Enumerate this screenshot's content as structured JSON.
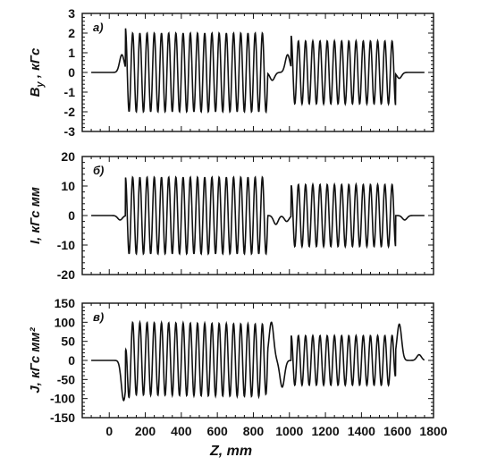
{
  "chart_data": [
    {
      "type": "line",
      "panel_label": "а)",
      "ylabel": "B_y , кГс",
      "ylabel_main": "B",
      "ylabel_sub": "y",
      "ylabel_rest": " , кГс",
      "ylim": [
        -3,
        3
      ],
      "yticks": [
        -3,
        -2,
        -1,
        0,
        1,
        2,
        3
      ],
      "xlim": [
        -150,
        1800
      ],
      "series": [
        {
          "segments": [
            {
              "z_start": 90,
              "z_end": 880,
              "amplitude": 2.0,
              "period": 40
            },
            {
              "z_start": 1010,
              "z_end": 1590,
              "amplitude": 1.6,
              "period": 40
            }
          ],
          "edge_bumps": [
            {
              "z": 70,
              "value": 0.9
            },
            {
              "z": 905,
              "value": -0.4
            },
            {
              "z": 990,
              "value": 0.9
            },
            {
              "z": 1610,
              "value": -0.3
            }
          ]
        }
      ]
    },
    {
      "type": "line",
      "panel_label": "б)",
      "ylabel": "I, кГс мм",
      "ylim": [
        -20,
        20
      ],
      "yticks": [
        -20,
        -10,
        0,
        10,
        20
      ],
      "xlim": [
        -150,
        1800
      ],
      "series": [
        {
          "segments": [
            {
              "z_start": 90,
              "z_end": 880,
              "amplitude": 13.0,
              "period": 40
            },
            {
              "z_start": 1010,
              "z_end": 1590,
              "amplitude": 10.5,
              "period": 40
            }
          ],
          "edge_bumps": [
            {
              "z": 60,
              "value": -1.5
            },
            {
              "z": 925,
              "value": -3.0
            },
            {
              "z": 985,
              "value": -2.0
            },
            {
              "z": 1640,
              "value": -1.5
            }
          ]
        }
      ]
    },
    {
      "type": "line",
      "panel_label": "в)",
      "ylabel": "J, кГс мм²",
      "ylim": [
        -150,
        150
      ],
      "yticks": [
        -150,
        -100,
        -50,
        0,
        50,
        100,
        150
      ],
      "xlim": [
        -150,
        1800
      ],
      "xticks": [
        0,
        200,
        400,
        600,
        800,
        1000,
        1200,
        1400,
        1600,
        1800
      ],
      "xlabel": "Z, mm",
      "series": [
        {
          "segments": [
            {
              "z_start": 90,
              "z_end": 880,
              "amplitude": 95,
              "period": 40,
              "offset_start": 5,
              "offset_end": 0
            },
            {
              "z_start": 1010,
              "z_end": 1590,
              "amplitude": 65,
              "period": 40,
              "offset_start": 0,
              "offset_end": 0
            }
          ],
          "edge_features": [
            {
              "z": 80,
              "value": -105
            },
            {
              "z": 900,
              "value": 100
            },
            {
              "z": 960,
              "value": -70
            },
            {
              "z": 1610,
              "value": 95
            },
            {
              "z": 1720,
              "value": 15
            }
          ]
        }
      ]
    }
  ]
}
